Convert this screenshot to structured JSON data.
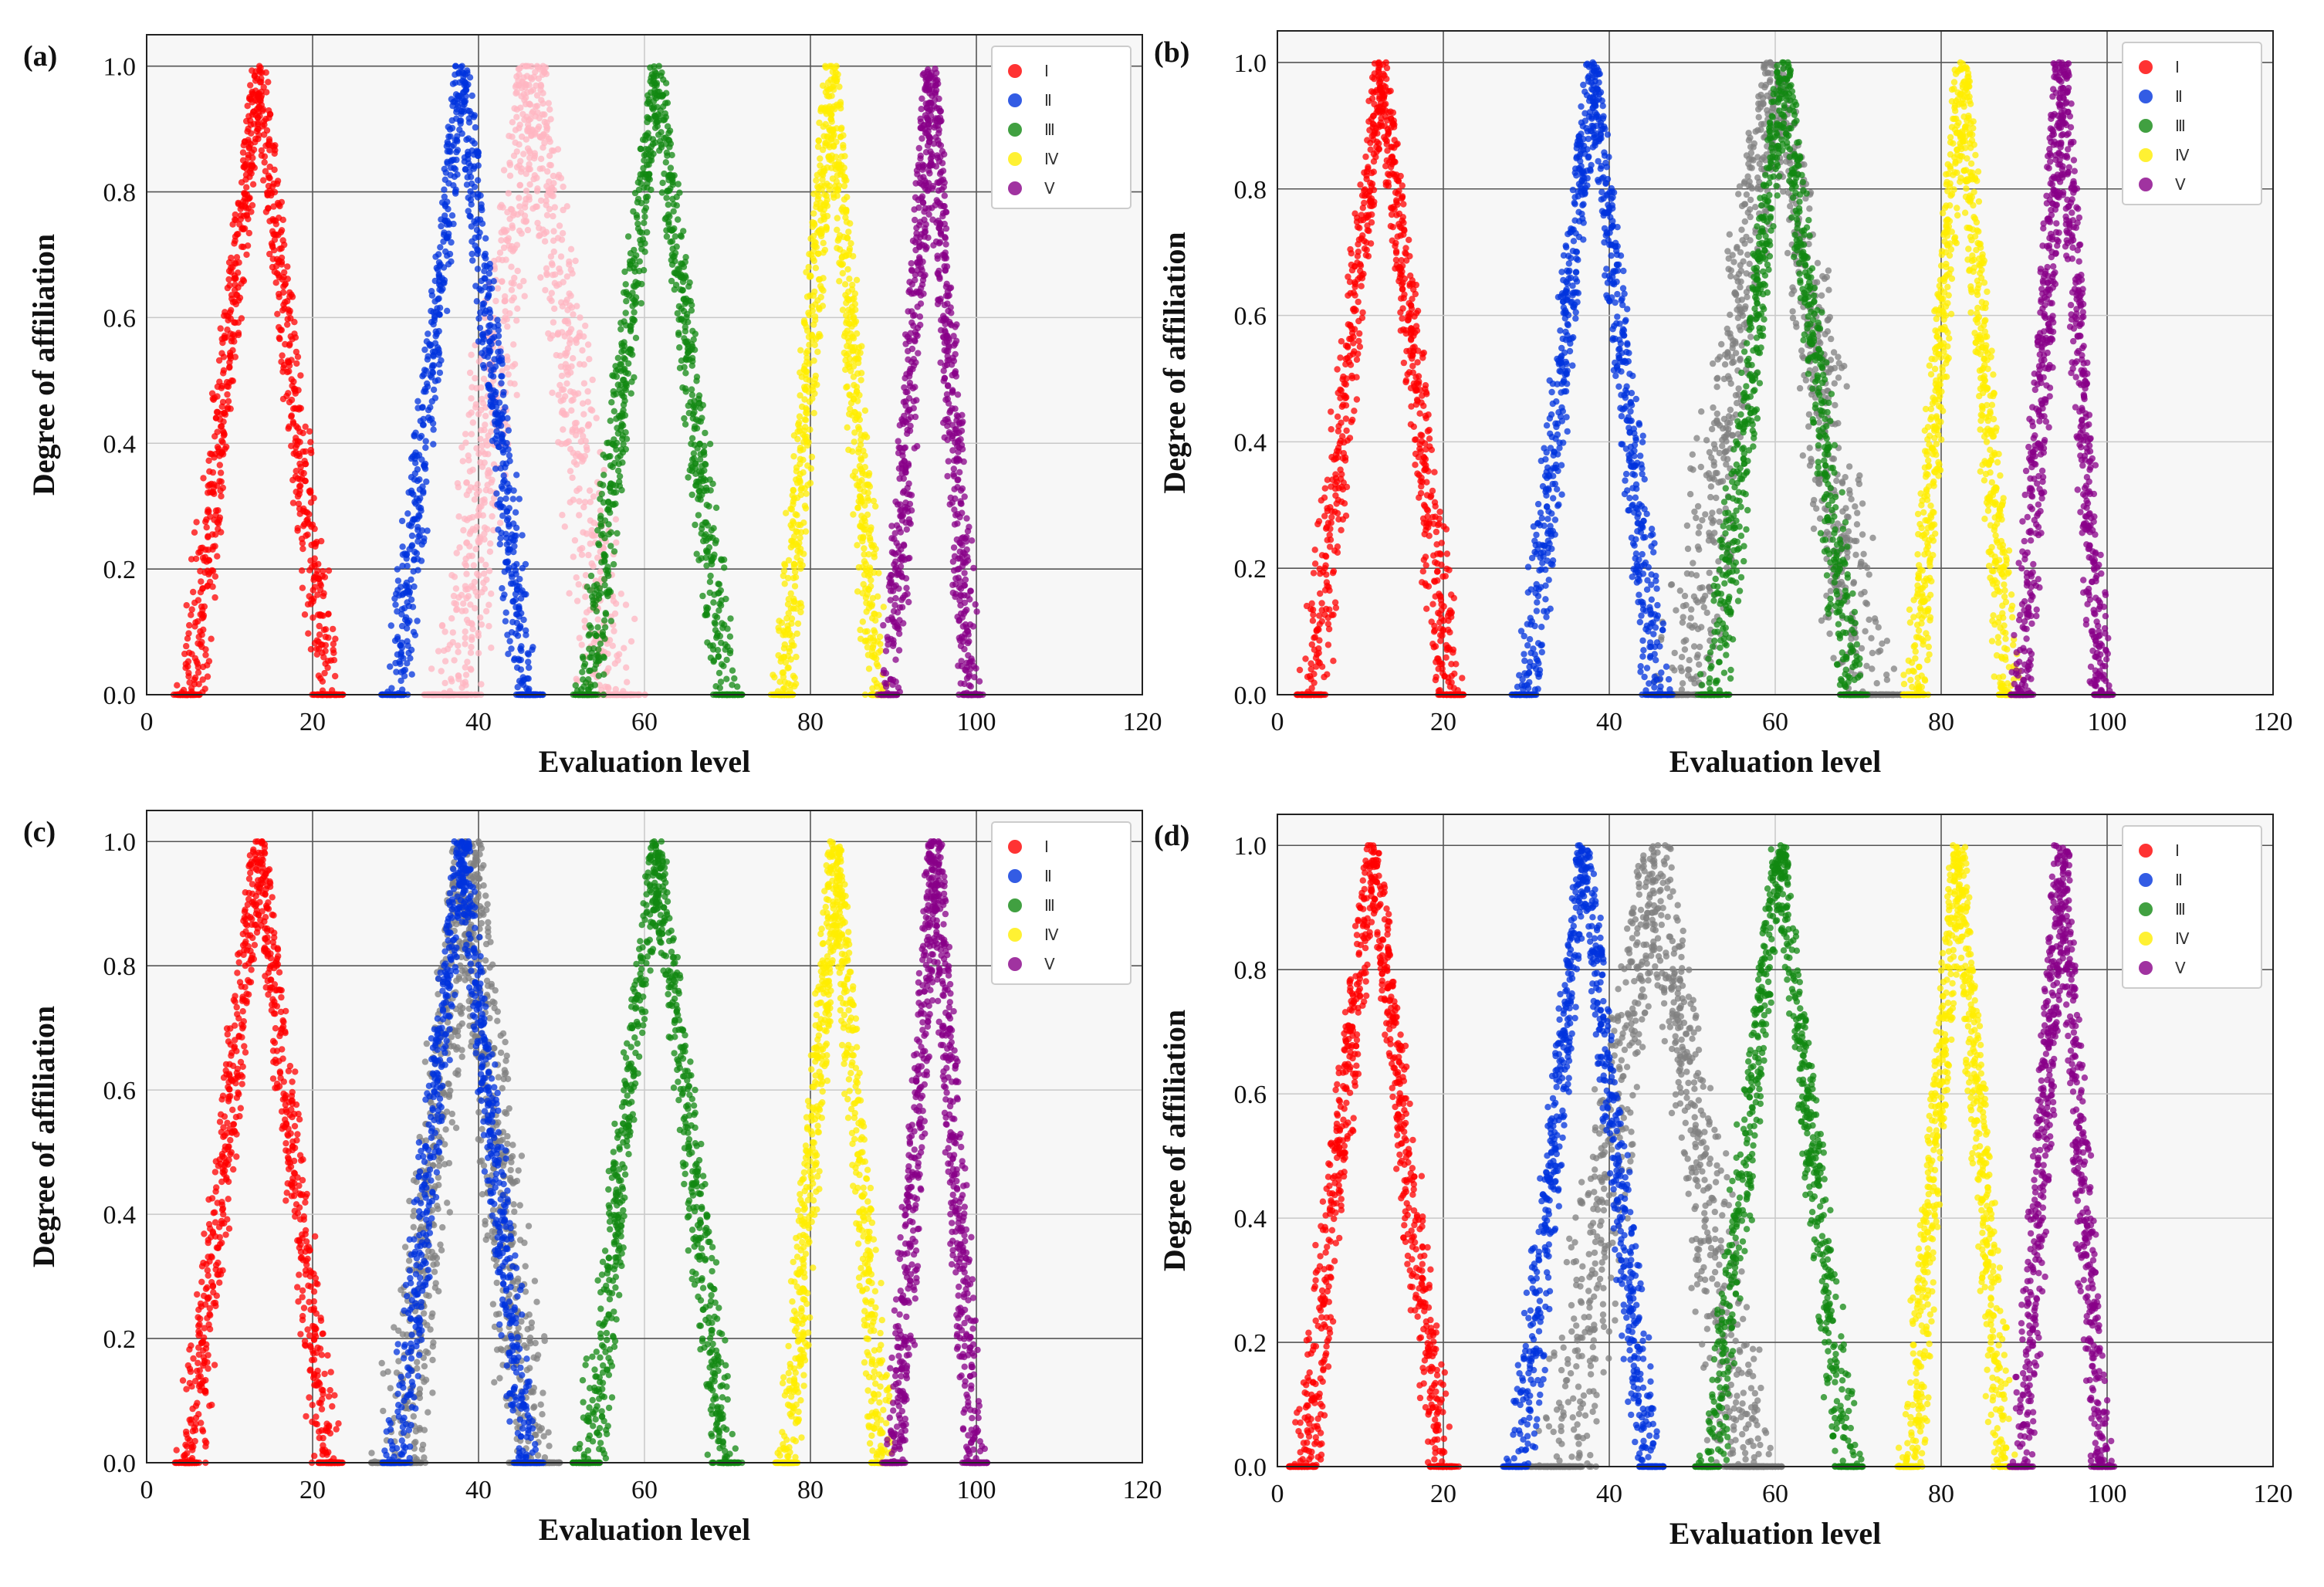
{
  "chart_data": [
    {
      "type": "scatter",
      "panel_label": "(a)",
      "xlabel": "Evaluation level",
      "ylabel": "Degree of affiliation",
      "xlim": [
        0,
        120
      ],
      "ylim": [
        0,
        1.05
      ],
      "xticks": [
        "0",
        "20",
        "40",
        "60",
        "80",
        "100",
        "120"
      ],
      "yticks": [
        "0.0",
        "0.2",
        "0.4",
        "0.6",
        "0.8",
        "1.0"
      ],
      "legend_position": "top-right",
      "grid": true,
      "series": [
        {
          "name": "Ⅰ",
          "color": "#ff0000",
          "center": 13.5,
          "halfwidth": 9.5
        },
        {
          "name": "Ⅱ",
          "color": "#0033dd",
          "center": 38,
          "halfwidth": 9
        },
        {
          "name": "Ⅲ",
          "color": "#118811",
          "center": 61.5,
          "halfwidth": 9.5
        },
        {
          "name": "Ⅳ",
          "color": "#ffee00",
          "center": 82.5,
          "halfwidth": 6.5
        },
        {
          "name": "Ⅴ",
          "color": "#880088",
          "center": 94.5,
          "halfwidth": 5.5
        }
      ],
      "evaluated": {
        "color": "#ffb6c1",
        "center": 46.5,
        "halfwidth": 12
      }
    },
    {
      "type": "scatter",
      "panel_label": "(b)",
      "xlabel": "Evaluation level",
      "ylabel": "Degree of affiliation",
      "xlim": [
        0,
        120
      ],
      "ylim": [
        0,
        1.05
      ],
      "xticks": [
        "0",
        "20",
        "40",
        "60",
        "80",
        "100",
        "120"
      ],
      "yticks": [
        "0.0",
        "0.2",
        "0.4",
        "0.6",
        "0.8",
        "1.0"
      ],
      "legend_position": "top-right",
      "grid": true,
      "series": [
        {
          "name": "Ⅰ",
          "color": "#ff0000",
          "center": 12.5,
          "halfwidth": 9.5
        },
        {
          "name": "Ⅱ",
          "color": "#0033dd",
          "center": 38,
          "halfwidth": 9
        },
        {
          "name": "Ⅲ",
          "color": "#118811",
          "center": 61,
          "halfwidth": 9.5
        },
        {
          "name": "Ⅳ",
          "color": "#ffee00",
          "center": 82.5,
          "halfwidth": 6.5
        },
        {
          "name": "Ⅴ",
          "color": "#880088",
          "center": 94.5,
          "halfwidth": 5.5
        }
      ],
      "evaluated": {
        "color": "#808080",
        "center": 60,
        "halfwidth": 14
      }
    },
    {
      "type": "scatter",
      "panel_label": "(c)",
      "xlabel": "Evaluation level",
      "ylabel": "Degree of affiliation",
      "xlim": [
        0,
        120
      ],
      "ylim": [
        0,
        1.05
      ],
      "xticks": [
        "0",
        "20",
        "40",
        "60",
        "80",
        "100",
        "120"
      ],
      "yticks": [
        "0.0",
        "0.2",
        "0.4",
        "0.6",
        "0.8",
        "1.0"
      ],
      "legend_position": "top-right",
      "grid": true,
      "series": [
        {
          "name": "Ⅰ",
          "color": "#ff0000",
          "center": 13.5,
          "halfwidth": 9.5
        },
        {
          "name": "Ⅱ",
          "color": "#0033dd",
          "center": 38,
          "halfwidth": 9
        },
        {
          "name": "Ⅲ",
          "color": "#118811",
          "center": 61.5,
          "halfwidth": 9.5
        },
        {
          "name": "Ⅳ",
          "color": "#ffee00",
          "center": 83,
          "halfwidth": 6.5
        },
        {
          "name": "Ⅴ",
          "color": "#880088",
          "center": 95,
          "halfwidth": 5.5
        }
      ],
      "evaluated": {
        "color": "#808080",
        "center": 38.5,
        "halfwidth": 10
      }
    },
    {
      "type": "scatter",
      "panel_label": "(d)",
      "xlabel": "Evaluation level",
      "ylabel": "Degree of affiliation",
      "xlim": [
        0,
        120
      ],
      "ylim": [
        0,
        1.05
      ],
      "xticks": [
        "0",
        "20",
        "40",
        "60",
        "80",
        "100",
        "120"
      ],
      "yticks": [
        "0.0",
        "0.2",
        "0.4",
        "0.6",
        "0.8",
        "1.0"
      ],
      "legend_position": "top-right",
      "grid": true,
      "series": [
        {
          "name": "Ⅰ",
          "color": "#ff0000",
          "center": 11.5,
          "halfwidth": 9.5
        },
        {
          "name": "Ⅱ",
          "color": "#0033dd",
          "center": 37,
          "halfwidth": 9
        },
        {
          "name": "Ⅲ",
          "color": "#118811",
          "center": 60.5,
          "halfwidth": 9.5
        },
        {
          "name": "Ⅳ",
          "color": "#ffee00",
          "center": 82,
          "halfwidth": 6.5
        },
        {
          "name": "Ⅴ",
          "color": "#880088",
          "center": 94.5,
          "halfwidth": 5.5
        }
      ],
      "evaluated": {
        "color": "#808080",
        "center": 45.5,
        "halfwidth": 14
      }
    }
  ]
}
